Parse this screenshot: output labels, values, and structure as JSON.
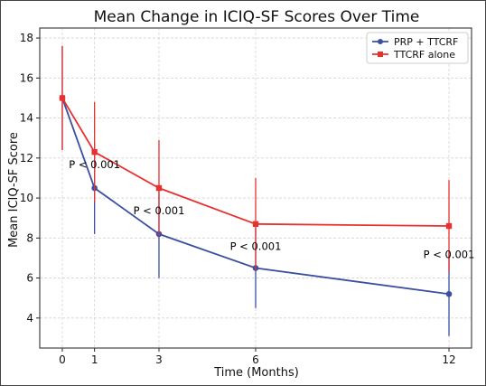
{
  "chart_data": {
    "type": "line",
    "title": "Mean Change in ICIQ-SF Scores Over Time",
    "xlabel": "Time (Months)",
    "ylabel": "Mean ICIQ-SF Score",
    "x": [
      0,
      1,
      3,
      6,
      12
    ],
    "x_ticks": [
      "0",
      "1",
      "3",
      "6",
      "12"
    ],
    "y_ticks": [
      "4",
      "6",
      "8",
      "10",
      "12",
      "14",
      "16",
      "18"
    ],
    "xlim": [
      -0.7,
      12.7
    ],
    "ylim": [
      2.5,
      18.5
    ],
    "grid": true,
    "legend_position": "top-right",
    "series": [
      {
        "name": "PRP + TTCRF",
        "color": "#3a4fa0",
        "marker": "circle",
        "values": [
          15.0,
          10.5,
          8.2,
          6.5,
          5.2
        ],
        "error_low": [
          12.4,
          8.2,
          6.0,
          4.5,
          3.1
        ],
        "error_high": [
          17.6,
          12.8,
          10.4,
          8.5,
          7.3
        ]
      },
      {
        "name": "TTCRF alone",
        "color": "#e8312f",
        "marker": "square",
        "values": [
          15.0,
          12.3,
          10.5,
          8.7,
          8.6
        ],
        "error_low": [
          12.4,
          9.8,
          8.1,
          6.4,
          6.3
        ],
        "error_high": [
          17.6,
          14.8,
          12.9,
          11.0,
          10.9
        ]
      }
    ],
    "annotations": [
      {
        "text": "P < 0.001",
        "x": 1,
        "y": 11.5
      },
      {
        "text": "P < 0.001",
        "x": 3,
        "y": 9.2
      },
      {
        "text": "P < 0.001",
        "x": 6,
        "y": 7.4
      },
      {
        "text": "P < 0.001",
        "x": 12,
        "y": 7.0
      }
    ]
  }
}
